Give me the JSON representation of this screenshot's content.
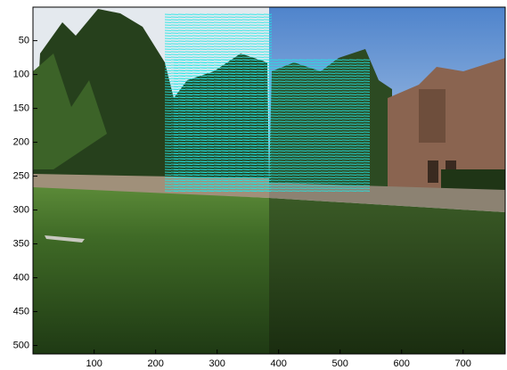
{
  "chart_data": {
    "type": "image",
    "xlim": [
      0.5,
      768.5
    ],
    "ylim": [
      0.5,
      512.5
    ],
    "xticks": [
      100,
      200,
      300,
      400,
      500,
      600,
      700
    ],
    "yticks": [
      50,
      100,
      150,
      200,
      250,
      300,
      350,
      400,
      450,
      500
    ],
    "y_reversed": true
  }
}
